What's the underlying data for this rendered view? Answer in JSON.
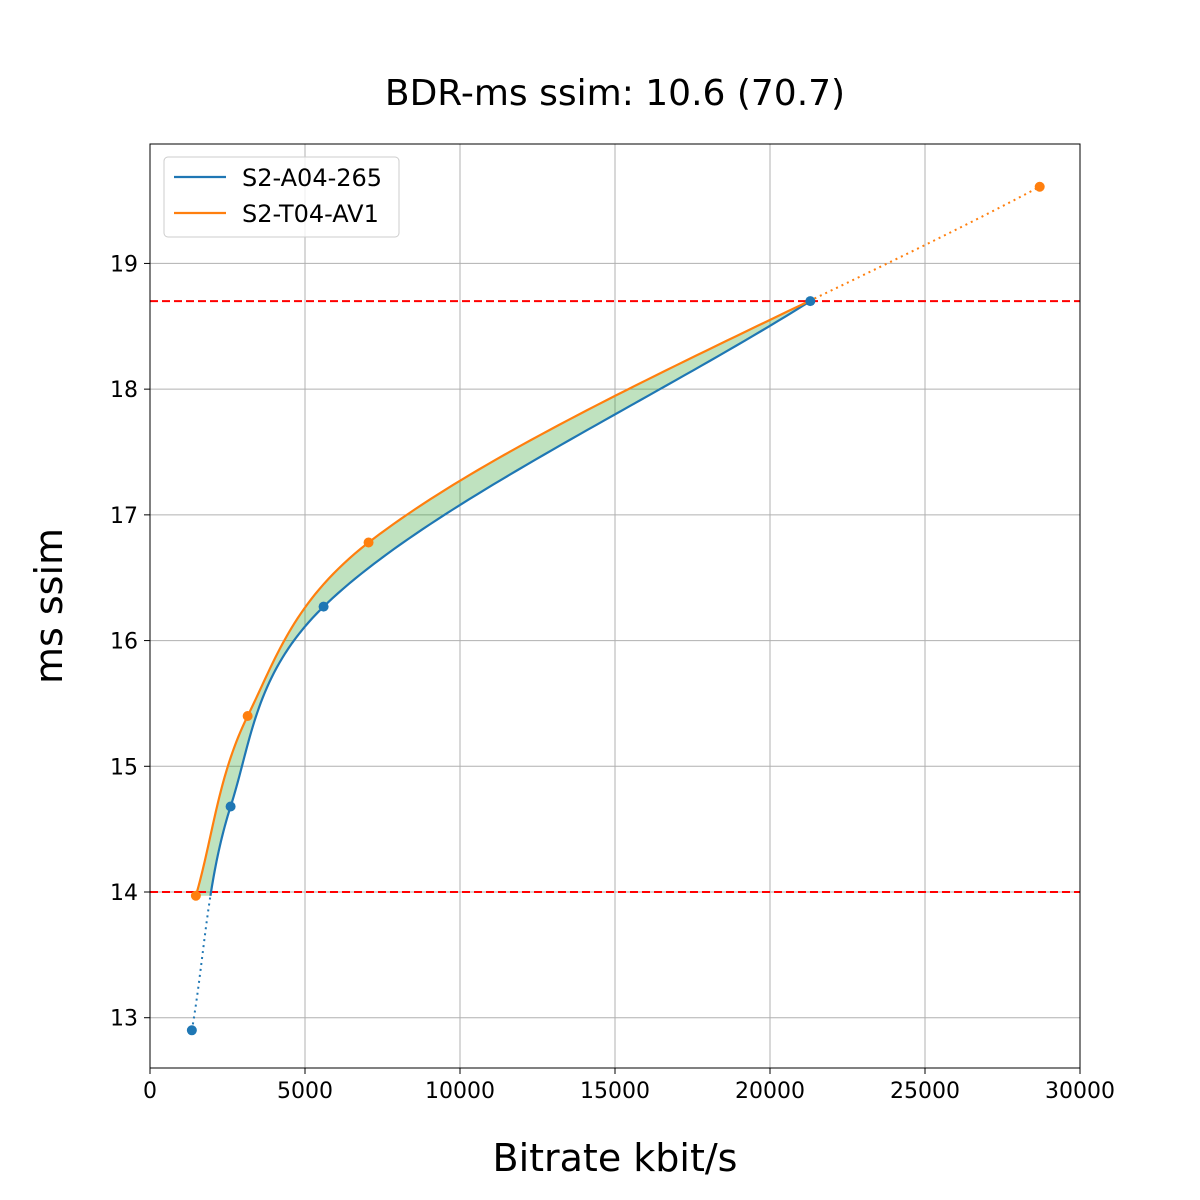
{
  "chart_data": {
    "type": "line",
    "title": "BDR-ms ssim: 10.6 (70.7)",
    "xlabel": "Bitrate kbit/s",
    "ylabel": "ms ssim",
    "xlim": [
      0,
      30000
    ],
    "ylim": [
      12.6,
      19.95
    ],
    "xticks": [
      0,
      5000,
      10000,
      15000,
      20000,
      25000,
      30000
    ],
    "xtick_labels": [
      "0",
      "5000",
      "10000",
      "15000",
      "20000",
      "25000",
      "30000"
    ],
    "yticks": [
      13,
      14,
      15,
      16,
      17,
      18,
      19
    ],
    "ytick_labels": [
      "13",
      "14",
      "15",
      "16",
      "17",
      "18",
      "19"
    ],
    "grid": true,
    "legend_position": "top-left",
    "reference_lines": [
      14.0,
      18.7
    ],
    "reference_line_color": "#ff0000",
    "fill_color": "#2ca02c",
    "series": [
      {
        "name": "S2-A04-265",
        "color": "#1f77b4",
        "points": [
          [
            1350,
            12.9
          ],
          [
            2600,
            14.68
          ],
          [
            5600,
            16.27
          ],
          [
            21300,
            18.7
          ]
        ]
      },
      {
        "name": "S2-T04-AV1",
        "color": "#ff7f0e",
        "points": [
          [
            1480,
            13.97
          ],
          [
            3150,
            15.4
          ],
          [
            7050,
            16.78
          ],
          [
            28700,
            19.61
          ]
        ]
      }
    ]
  }
}
